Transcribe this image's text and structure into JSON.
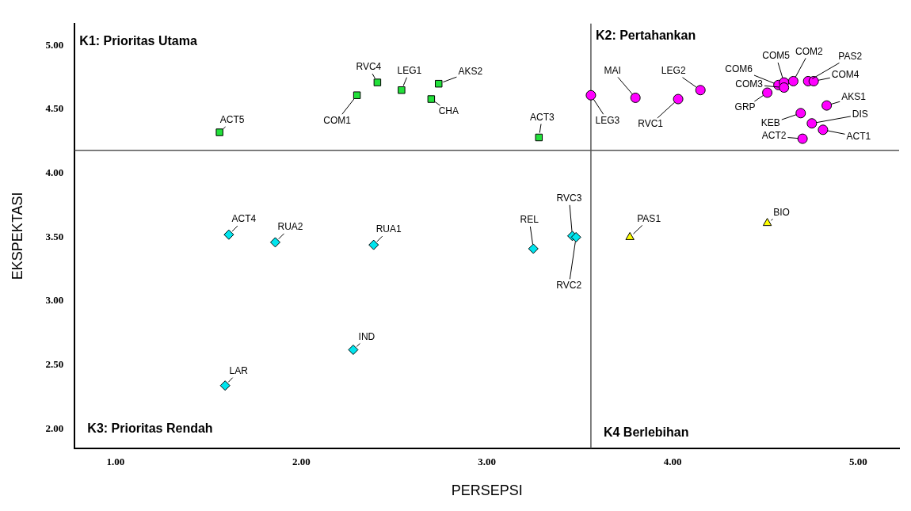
{
  "chart_data": {
    "type": "scatter",
    "xlabel": "PERSEPSI",
    "ylabel": "EKSPEKTASI",
    "xlim": [
      0.78,
      5.22
    ],
    "ylim": [
      1.85,
      5.17
    ],
    "xticks": [
      {
        "value": 1,
        "label": "1.00"
      },
      {
        "value": 2,
        "label": "2.00"
      },
      {
        "value": 3,
        "label": "3.00"
      },
      {
        "value": 4,
        "label": "4.00"
      },
      {
        "value": 5,
        "label": "5.00"
      }
    ],
    "yticks": [
      {
        "value": 2,
        "label": "2.00"
      },
      {
        "value": 2.5,
        "label": "2.50"
      },
      {
        "value": 3,
        "label": "3.00"
      },
      {
        "value": 3.5,
        "label": "3.50"
      },
      {
        "value": 4,
        "label": "4.00"
      },
      {
        "value": 4.5,
        "label": "4.50"
      },
      {
        "value": 5,
        "label": "5.00"
      }
    ],
    "series": [
      {
        "color": "#22e03a",
        "marker": "square",
        "x": [
          1.56,
          2.3,
          2.41,
          2.54,
          2.74,
          2.7,
          3.28
        ],
        "values": [
          4.32,
          4.61,
          4.71,
          4.65,
          4.7,
          4.58,
          4.28
        ]
      },
      {
        "color": "#ff00ff",
        "marker": "circle",
        "x": [
          3.56,
          3.8,
          4.03,
          4.15,
          4.57,
          4.6,
          4.6,
          4.65,
          4.73,
          4.76,
          4.51,
          4.83,
          4.69,
          4.75,
          4.81,
          4.7
        ],
        "values": [
          4.61,
          4.59,
          4.58,
          4.65,
          4.69,
          4.71,
          4.67,
          4.72,
          4.72,
          4.72,
          4.63,
          4.53,
          4.47,
          4.39,
          4.34,
          4.27
        ]
      },
      {
        "color": "#00e5ee",
        "marker": "diamond",
        "x": [
          1.61,
          1.86,
          2.39,
          3.25,
          3.46,
          3.48,
          2.28,
          1.59
        ],
        "values": [
          3.52,
          3.46,
          3.44,
          3.41,
          3.51,
          3.5,
          2.62,
          2.34
        ]
      },
      {
        "color": "#ffff00",
        "marker": "triangle",
        "x": [
          3.77,
          4.51
        ],
        "values": [
          3.5,
          3.61
        ]
      }
    ],
    "ref_lines": [
      {
        "axis": "x",
        "value": 3.56,
        "color": "#555555"
      },
      {
        "axis": "y",
        "value": 4.18,
        "color": "#555555"
      }
    ],
    "annotations": [
      "K1: Prioritas Utama",
      "K2: Pertahankan",
      "K3: Prioritas Rendah",
      "K4 Berlebihan",
      {
        "text": "ACT5",
        "x": 1.56,
        "y": 4.32
      },
      {
        "text": "COM1",
        "x": 2.3,
        "y": 4.61
      },
      {
        "text": "RVC4",
        "x": 2.41,
        "y": 4.71
      },
      {
        "text": "LEG1",
        "x": 2.54,
        "y": 4.65
      },
      {
        "text": "AKS2",
        "x": 2.74,
        "y": 4.7
      },
      {
        "text": "CHA",
        "x": 2.7,
        "y": 4.58
      },
      {
        "text": "ACT3",
        "x": 3.28,
        "y": 4.28
      },
      {
        "text": "LEG3",
        "x": 3.56,
        "y": 4.61
      },
      {
        "text": "MAI",
        "x": 3.8,
        "y": 4.59
      },
      {
        "text": "RVC1",
        "x": 4.03,
        "y": 4.58
      },
      {
        "text": "LEG2",
        "x": 4.15,
        "y": 4.65
      },
      {
        "text": "COM6",
        "x": 4.57,
        "y": 4.69
      },
      {
        "text": "COM5",
        "x": 4.6,
        "y": 4.71
      },
      {
        "text": "COM3",
        "x": 4.6,
        "y": 4.67
      },
      {
        "text": "COM2",
        "x": 4.65,
        "y": 4.72
      },
      {
        "text": "PAS2",
        "x": 4.73,
        "y": 4.72
      },
      {
        "text": "COM4",
        "x": 4.76,
        "y": 4.72
      },
      {
        "text": "GRP",
        "x": 4.51,
        "y": 4.63
      },
      {
        "text": "AKS1",
        "x": 4.83,
        "y": 4.53
      },
      {
        "text": "KEB",
        "x": 4.69,
        "y": 4.47
      },
      {
        "text": "DIS",
        "x": 4.75,
        "y": 4.39
      },
      {
        "text": "ACT1",
        "x": 4.81,
        "y": 4.34
      },
      {
        "text": "ACT2",
        "x": 4.7,
        "y": 4.27
      },
      {
        "text": "ACT4",
        "x": 1.61,
        "y": 3.52
      },
      {
        "text": "RUA2",
        "x": 1.86,
        "y": 3.46
      },
      {
        "text": "RUA1",
        "x": 2.39,
        "y": 3.44
      },
      {
        "text": "REL",
        "x": 3.25,
        "y": 3.41
      },
      {
        "text": "RVC3",
        "x": 3.46,
        "y": 3.51
      },
      {
        "text": "RVC2",
        "x": 3.48,
        "y": 3.5
      },
      {
        "text": "IND",
        "x": 2.28,
        "y": 2.62
      },
      {
        "text": "LAR",
        "x": 1.59,
        "y": 2.34
      },
      {
        "text": "PAS1",
        "x": 3.77,
        "y": 3.5
      },
      {
        "text": "BIO",
        "x": 4.51,
        "y": 3.61
      }
    ]
  }
}
